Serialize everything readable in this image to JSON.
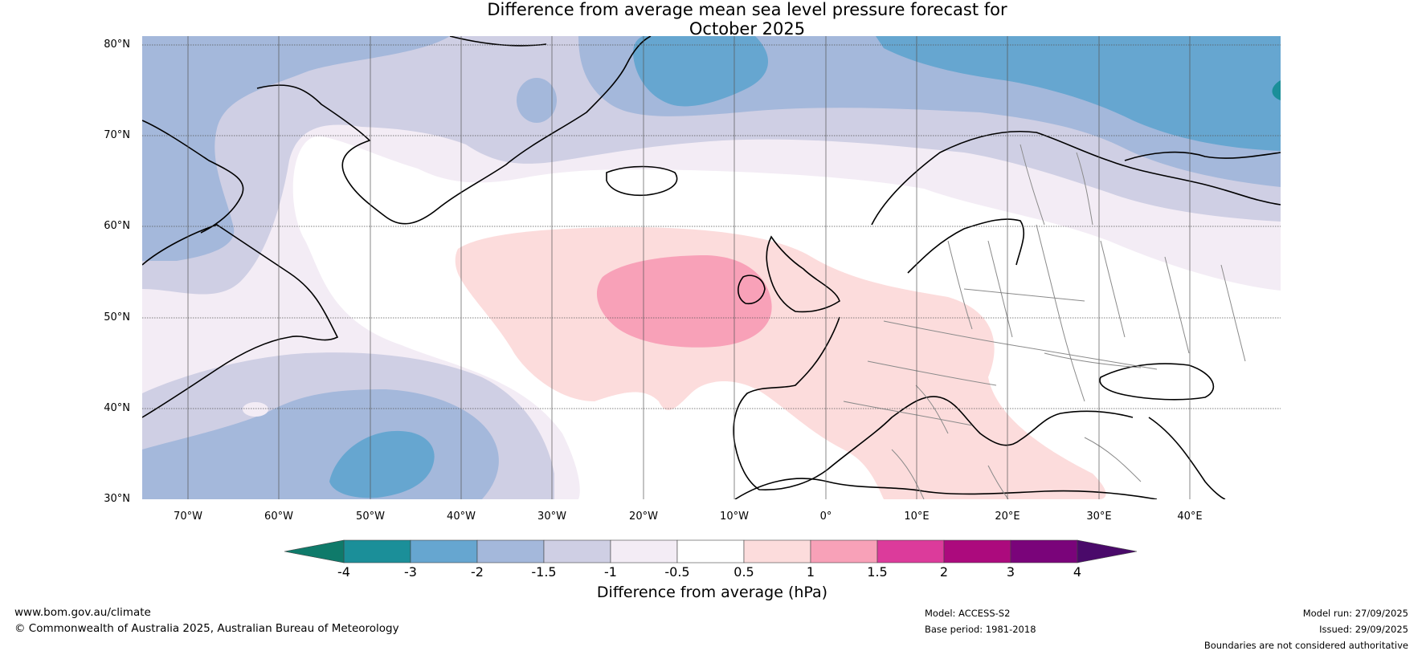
{
  "title_line1": "Difference from average mean sea level pressure forecast for",
  "title_line2": "October 2025",
  "lat_labels": [
    "80°N",
    "70°N",
    "60°N",
    "50°N",
    "40°N",
    "30°N"
  ],
  "lon_labels": [
    "70°W",
    "60°W",
    "50°W",
    "40°W",
    "30°W",
    "20°W",
    "10°W",
    "0°",
    "10°E",
    "20°E",
    "30°E",
    "40°E"
  ],
  "colorbar": {
    "label": "Difference from average (hPa)",
    "ticks": [
      "-4",
      "-3",
      "-2",
      "-1.5",
      "-1",
      "-0.5",
      "0.5",
      "1",
      "1.5",
      "2",
      "3",
      "4"
    ],
    "colors": [
      "#1b8f99",
      "#66a6d0",
      "#a4b8db",
      "#cfcfe4",
      "#f3ecf5",
      "#ffffff",
      "#fcdcdc",
      "#f8a1b8",
      "#dc3b9b",
      "#ac0a7d",
      "#7a047a"
    ],
    "under_color": "#0f7a6a",
    "over_color": "#4a0a6a"
  },
  "footer": {
    "website": "www.bom.gov.au/climate",
    "copyright": "© Commonwealth of Australia 2025, Australian Bureau of Meteorology",
    "model": "Model: ACCESS-S2",
    "base_period": "Base period: 1981-2018",
    "model_run": "Model run: 27/09/2025",
    "issued": "Issued: 29/09/2025",
    "disclaimer": "Boundaries are not considered authoritative"
  }
}
